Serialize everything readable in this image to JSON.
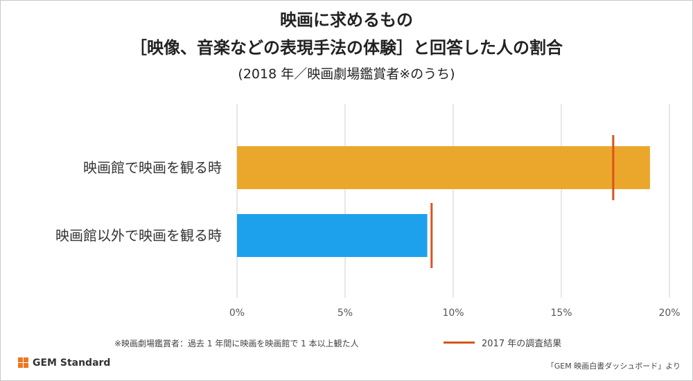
{
  "header": {
    "title_line1": "映画に求めるもの",
    "title_line2": "［映像、音楽などの表現手法の体験］と回答した人の割合",
    "subtitle": "(2018 年／映画劇場鑑賞者※のうち)"
  },
  "chart_data": {
    "type": "bar",
    "orientation": "horizontal",
    "categories": [
      "映画館で映画を観る時",
      "映画館以外で映画を観る時"
    ],
    "values": [
      19.1,
      8.8
    ],
    "bar_colors": [
      "#eba72b",
      "#1ea1ec"
    ],
    "reference_values": [
      17.4,
      9.0
    ],
    "reference_color": "#d9531e",
    "xlim": [
      0,
      20
    ],
    "x_ticks": [
      0,
      5,
      10,
      15,
      20
    ],
    "x_tick_labels": [
      "0%",
      "5%",
      "10%",
      "15%",
      "20%"
    ],
    "grid": true,
    "legend_position": "bottom"
  },
  "legend": {
    "label": "2017 年の調査結果"
  },
  "footer": {
    "note": "※映画劇場鑑賞者：過去 1 年間に映画を映画館で 1 本以上観た人",
    "logo_text": "GEM Standard",
    "source": "「GEM 映画白書ダッシュボード」より"
  }
}
